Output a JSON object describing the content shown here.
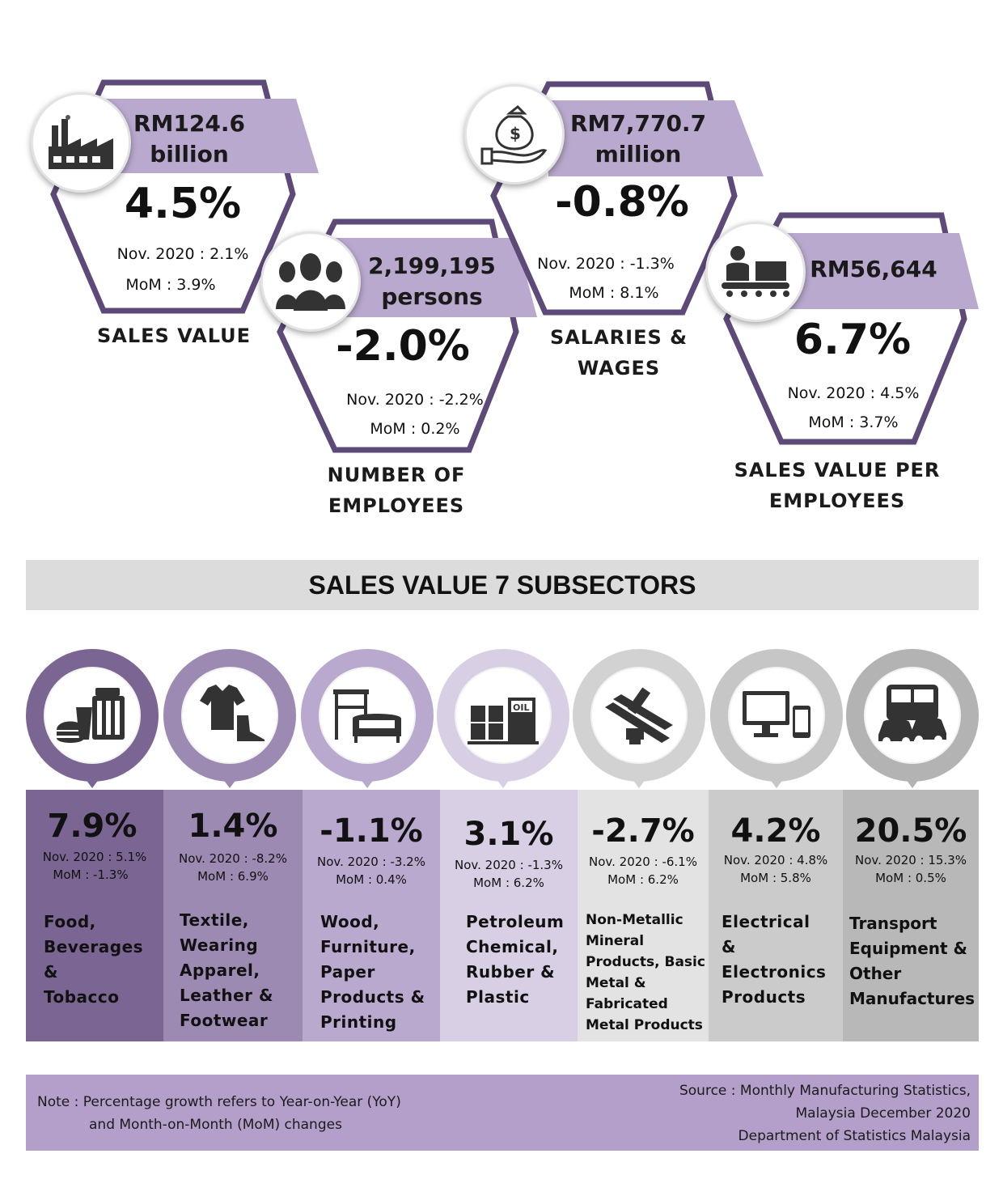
{
  "colors": {
    "purple_dark": "#7b6593",
    "purple_mid": "#9d8ab3",
    "purple_light": "#b9a9ce",
    "purple_pale": "#d8cfe4",
    "gray_light": "#dcdcdc",
    "gray_mid": "#c6c6c6",
    "gray_dark": "#b3b3b3",
    "hex_border": "#5e4a78"
  },
  "kpis": [
    {
      "id": "sales",
      "icon": "factory-icon",
      "headline_1": "RM124.6",
      "headline_2": "billion",
      "pct": "4.5%",
      "nov": "Nov. 2020 : 2.1%",
      "mom": "MoM : 3.9%",
      "label_1": "SALES VALUE",
      "label_2": ""
    },
    {
      "id": "employees",
      "icon": "people-icon",
      "headline_1": "2,199,195",
      "headline_2": "persons",
      "pct": "-2.0%",
      "nov": "Nov. 2020 : -2.2%",
      "mom": "MoM : 0.2%",
      "label_1": "NUMBER OF",
      "label_2": "EMPLOYEES"
    },
    {
      "id": "salaries",
      "icon": "money-bag-hand-icon",
      "headline_1": "RM7,770.7",
      "headline_2": "million",
      "pct": "-0.8%",
      "nov": "Nov. 2020 : -1.3%",
      "mom": "MoM : 8.1%",
      "label_1": "SALARIES &",
      "label_2": "WAGES"
    },
    {
      "id": "per_employee",
      "icon": "worker-conveyor-icon",
      "headline_1": "RM56,644",
      "headline_2": "",
      "pct": "6.7%",
      "nov": "Nov. 2020 : 4.5%",
      "mom": "MoM : 3.7%",
      "label_1": "SALES VALUE PER",
      "label_2": "EMPLOYEES"
    }
  ],
  "section_title": "SALES VALUE 7 SUBSECTORS",
  "subsectors": [
    {
      "icon": "food-beverage-icon",
      "pct": "7.9%",
      "nov": "Nov. 2020 :  5.1%",
      "mom": "MoM : -1.3%",
      "name": [
        "Food,",
        "Beverages",
        "&",
        "Tobacco"
      ]
    },
    {
      "icon": "clothing-shoe-icon",
      "pct": "1.4%",
      "nov": "Nov. 2020 :  -8.2%",
      "mom": "MoM : 6.9%",
      "name": [
        "Textile,",
        "Wearing",
        "Apparel,",
        "Leather &",
        "Footwear"
      ]
    },
    {
      "icon": "furniture-icon",
      "pct": "-1.1%",
      "nov": "Nov. 2020 :  -3.2%",
      "mom": "MoM : 0.4%",
      "name": [
        "Wood,",
        "Furniture,",
        "Paper",
        "Products &",
        "Printing"
      ]
    },
    {
      "icon": "oil-barrels-icon",
      "pct": "3.1%",
      "nov": "Nov. 2020 : -1.3%",
      "mom": "MoM : 6.2%",
      "name": [
        "Petroleum",
        "Chemical,",
        "Rubber &",
        "Plastic"
      ]
    },
    {
      "icon": "metal-beams-icon",
      "pct": "-2.7%",
      "nov": "Nov. 2020 : -6.1%",
      "mom": "MoM : 6.2%",
      "name": [
        "Non-Metallic",
        "Mineral",
        "Products, Basic",
        "Metal &",
        "Fabricated",
        "Metal Products"
      ]
    },
    {
      "icon": "electronics-icon",
      "pct": "4.2%",
      "nov": "Nov. 2020 : 4.8%",
      "mom": "MoM : 5.8%",
      "name": [
        "Electrical",
        "&",
        "Electronics",
        "Products"
      ]
    },
    {
      "icon": "vehicles-icon",
      "pct": "20.5%",
      "nov": "Nov. 2020 : 15.3%",
      "mom": "MoM : 0.5%",
      "name": [
        "Transport",
        "Equipment &",
        "Other",
        "Manufactures"
      ]
    }
  ],
  "footer": {
    "note_1": "Note : Percentage growth refers to Year-on-Year (YoY)",
    "note_2": "and Month-on-Month (MoM) changes",
    "source_1": "Source : Monthly Manufacturing Statistics,",
    "source_2": "Malaysia December 2020",
    "source_3": "Department of Statistics Malaysia"
  }
}
